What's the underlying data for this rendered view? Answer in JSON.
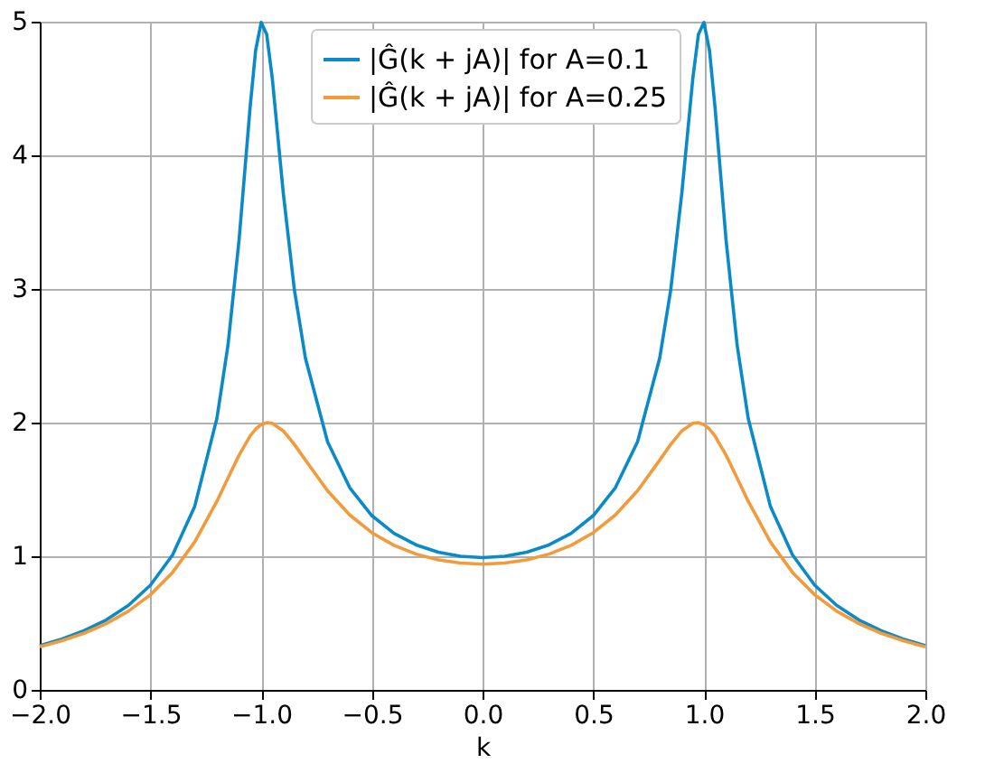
{
  "chart_data": {
    "type": "line",
    "xlabel": "k",
    "x": [
      -2.0,
      -1.9,
      -1.8,
      -1.7,
      -1.6,
      -1.5,
      -1.4,
      -1.3,
      -1.2,
      -1.15,
      -1.1,
      -1.05,
      -1.025,
      -1.0,
      -0.975,
      -0.95,
      -0.9,
      -0.85,
      -0.8,
      -0.7,
      -0.6,
      -0.5,
      -0.4,
      -0.3,
      -0.2,
      -0.1,
      0.0,
      0.1,
      0.2,
      0.3,
      0.4,
      0.5,
      0.6,
      0.7,
      0.8,
      0.85,
      0.9,
      0.95,
      0.975,
      1.0,
      1.025,
      1.05,
      1.1,
      1.15,
      1.2,
      1.3,
      1.4,
      1.5,
      1.6,
      1.7,
      1.8,
      1.9,
      2.0
    ],
    "series": [
      {
        "name": "|Ĝ(k + jA)| for A=0.1",
        "color": "#0a8ac8",
        "values": [
          0.331,
          0.381,
          0.443,
          0.523,
          0.632,
          0.784,
          1.01,
          1.374,
          2.031,
          2.577,
          3.363,
          4.358,
          4.785,
          4.994,
          4.906,
          4.58,
          3.716,
          2.994,
          2.481,
          1.857,
          1.513,
          1.304,
          1.171,
          1.085,
          1.03,
          1.0,
          0.99,
          1.0,
          1.03,
          1.085,
          1.171,
          1.304,
          1.513,
          1.857,
          2.481,
          2.994,
          3.716,
          4.58,
          4.906,
          4.994,
          4.785,
          4.358,
          3.363,
          2.577,
          2.031,
          1.374,
          1.01,
          0.784,
          0.632,
          0.523,
          0.443,
          0.381,
          0.331
        ]
      },
      {
        "name": "|Ĝ(k + jA)| for A=0.25",
        "color": "#f39a3a",
        "values": [
          0.322,
          0.368,
          0.424,
          0.496,
          0.589,
          0.712,
          0.879,
          1.107,
          1.411,
          1.585,
          1.756,
          1.899,
          1.951,
          1.985,
          1.999,
          1.995,
          1.938,
          1.837,
          1.719,
          1.49,
          1.309,
          1.176,
          1.082,
          1.016,
          0.973,
          0.949,
          0.941,
          0.949,
          0.973,
          1.016,
          1.082,
          1.176,
          1.309,
          1.49,
          1.719,
          1.837,
          1.938,
          1.995,
          1.999,
          1.985,
          1.951,
          1.899,
          1.756,
          1.585,
          1.411,
          1.107,
          0.879,
          0.712,
          0.589,
          0.496,
          0.424,
          0.368,
          0.322
        ]
      }
    ],
    "xlim": [
      -2.0,
      2.0
    ],
    "xticks": [
      {
        "value": -2.0,
        "label": "−2.0"
      },
      {
        "value": -1.5,
        "label": "−1.5"
      },
      {
        "value": -1.0,
        "label": "−1.0"
      },
      {
        "value": -0.5,
        "label": "−0.5"
      },
      {
        "value": 0.0,
        "label": "0.0"
      },
      {
        "value": 0.5,
        "label": "0.5"
      },
      {
        "value": 1.0,
        "label": "1.0"
      },
      {
        "value": 1.5,
        "label": "1.5"
      },
      {
        "value": 2.0,
        "label": "2.0"
      }
    ],
    "ylim": [
      0,
      5
    ],
    "yticks": [
      0,
      1,
      2,
      3,
      4,
      5
    ],
    "grid": true,
    "legend": "top",
    "marker": "none",
    "line_style": "solid"
  }
}
